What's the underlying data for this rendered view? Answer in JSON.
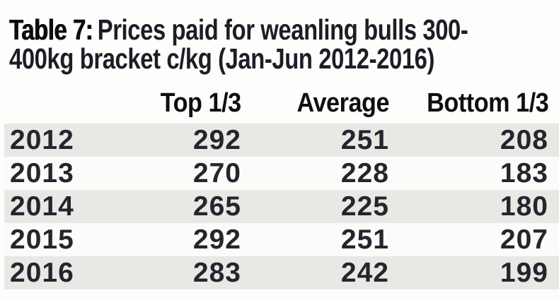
{
  "title": {
    "prefix": "Table 7:",
    "line1_rest": "Prices paid for weanling bulls 300-",
    "line2": "400kg bracket c/kg (Jan-Jun 2012-2016)",
    "full": "Table 7: Prices paid for weanling bulls 300-400kg bracket c/kg (Jan-Jun 2012-2016)"
  },
  "chart_data": {
    "type": "table",
    "title": "Table 7: Prices paid for weanling bulls 300-400kg bracket c/kg (Jan-Jun 2012-2016)",
    "header": {
      "col1": "",
      "col2": "Top 1/3",
      "col3": "Average",
      "col4": "Bottom 1/3"
    },
    "columns": [
      "Top 1/3",
      "Average",
      "Bottom 1/3"
    ],
    "rows": [
      {
        "year": "2012",
        "top": "292",
        "avg": "251",
        "bottom": "208"
      },
      {
        "year": "2013",
        "top": "270",
        "avg": "228",
        "bottom": "183"
      },
      {
        "year": "2014",
        "top": "265",
        "avg": "225",
        "bottom": "180"
      },
      {
        "year": "2015",
        "top": "292",
        "avg": "251",
        "bottom": "207"
      },
      {
        "year": "2016",
        "top": "283",
        "avg": "242",
        "bottom": "199"
      }
    ]
  },
  "colors": {
    "background": "#fdfdfc",
    "row_stripe": "#e9e8e5",
    "row_plain": "#fbfbf9",
    "title_text": "#0c0c10",
    "body_text": "#25252d"
  }
}
